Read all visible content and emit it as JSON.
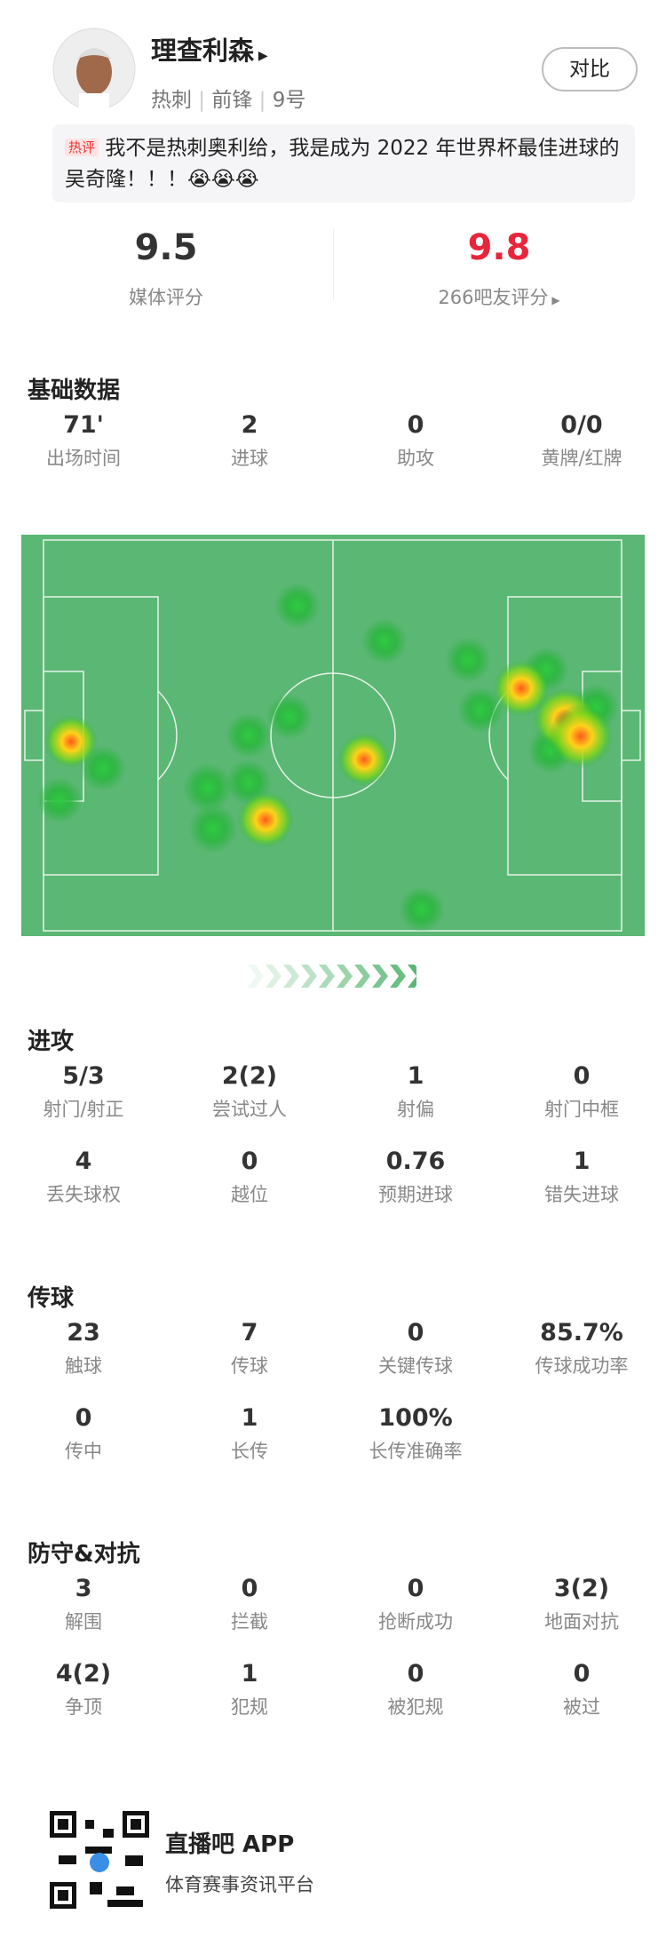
{
  "header": {
    "name": "理查利森",
    "team": "热刺",
    "position": "前锋",
    "number": "9号",
    "compare_button": "对比"
  },
  "comment": {
    "badge": "热评",
    "text": "我不是热刺奥利给，我是成为 2022 年世界杯最佳进球的吴奇隆！！！😭😭😭"
  },
  "ratings": {
    "media": {
      "value": "9.5",
      "label": "媒体评分"
    },
    "fans": {
      "value": "9.8",
      "label": "266吧友评分"
    }
  },
  "sections": [
    {
      "title": "基础数据",
      "rows": [
        [
          {
            "value": "71'",
            "label": "出场时间"
          },
          {
            "value": "2",
            "label": "进球"
          },
          {
            "value": "0",
            "label": "助攻"
          },
          {
            "value": "0/0",
            "label": "黄牌/红牌"
          }
        ]
      ]
    },
    {
      "title": "进攻",
      "rows": [
        [
          {
            "value": "5/3",
            "label": "射门/射正"
          },
          {
            "value": "2(2)",
            "label": "尝试过人"
          },
          {
            "value": "1",
            "label": "射偏"
          },
          {
            "value": "0",
            "label": "射门中框"
          }
        ],
        [
          {
            "value": "4",
            "label": "丢失球权"
          },
          {
            "value": "0",
            "label": "越位"
          },
          {
            "value": "0.76",
            "label": "预期进球"
          },
          {
            "value": "1",
            "label": "错失进球"
          }
        ]
      ]
    },
    {
      "title": "传球",
      "rows": [
        [
          {
            "value": "23",
            "label": "触球"
          },
          {
            "value": "7",
            "label": "传球"
          },
          {
            "value": "0",
            "label": "关键传球"
          },
          {
            "value": "85.7%",
            "label": "传球成功率"
          }
        ],
        [
          {
            "value": "0",
            "label": "传中"
          },
          {
            "value": "1",
            "label": "长传"
          },
          {
            "value": "100%",
            "label": "长传准确率"
          }
        ]
      ]
    },
    {
      "title": "防守&对抗",
      "rows": [
        [
          {
            "value": "3",
            "label": "解围"
          },
          {
            "value": "0",
            "label": "拦截"
          },
          {
            "value": "0",
            "label": "抢断成功"
          },
          {
            "value": "3(2)",
            "label": "地面对抗"
          }
        ],
        [
          {
            "value": "4(2)",
            "label": "争顶"
          },
          {
            "value": "1",
            "label": "犯规"
          },
          {
            "value": "0",
            "label": "被犯规"
          },
          {
            "value": "0",
            "label": "被过"
          }
        ]
      ]
    }
  ],
  "footer": {
    "app": "直播吧 APP",
    "slogan": "体育赛事资讯平台"
  }
}
